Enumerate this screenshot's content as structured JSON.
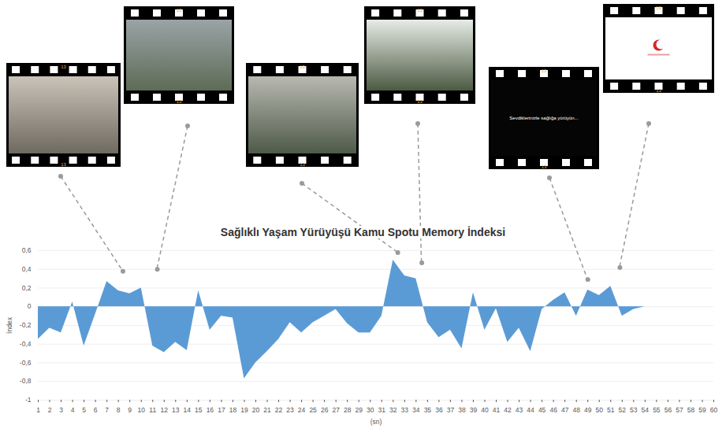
{
  "chart_data": {
    "type": "area",
    "title": "Sağlıklı Yaşam Yürüyüşü Kamu Spotu Memory İndeksi",
    "x_label": "(sn)",
    "y_label": "İndex",
    "x": [
      1,
      2,
      3,
      4,
      5,
      6,
      7,
      8,
      9,
      10,
      11,
      12,
      13,
      14,
      15,
      16,
      17,
      18,
      19,
      20,
      21,
      22,
      23,
      24,
      25,
      26,
      27,
      28,
      29,
      30,
      31,
      32,
      33,
      34,
      35,
      36,
      37,
      38,
      39,
      40,
      41,
      42,
      43,
      44,
      45,
      46,
      47,
      48,
      49,
      50,
      51,
      52,
      53,
      54,
      55,
      56,
      57,
      58,
      59,
      60
    ],
    "values": [
      -0.35,
      -0.23,
      -0.28,
      0.05,
      -0.42,
      -0.08,
      0.27,
      0.17,
      0.14,
      0.2,
      -0.42,
      -0.49,
      -0.38,
      -0.47,
      0.17,
      -0.25,
      -0.1,
      -0.12,
      -0.77,
      -0.6,
      -0.48,
      -0.35,
      -0.17,
      -0.28,
      -0.17,
      -0.1,
      -0.03,
      -0.18,
      -0.28,
      -0.28,
      -0.1,
      0.5,
      0.33,
      0.3,
      -0.17,
      -0.33,
      -0.25,
      -0.45,
      0.15,
      -0.25,
      -0.02,
      -0.38,
      -0.23,
      -0.48,
      -0.03,
      0.07,
      0.15,
      -0.1,
      0.18,
      0.12,
      0.22,
      -0.1,
      -0.03,
      null,
      null,
      null,
      null,
      null,
      null,
      null
    ],
    "color": "#5b9bd5",
    "xlim": [
      1,
      60
    ],
    "xticks": [
      1,
      2,
      3,
      4,
      5,
      6,
      7,
      8,
      9,
      10,
      11,
      12,
      13,
      14,
      15,
      16,
      17,
      18,
      19,
      20,
      21,
      22,
      23,
      24,
      25,
      26,
      27,
      28,
      29,
      30,
      31,
      32,
      33,
      34,
      35,
      36,
      37,
      38,
      39,
      40,
      41,
      42,
      43,
      44,
      45,
      46,
      47,
      48,
      49,
      50,
      51,
      52,
      53,
      54,
      55,
      56,
      57,
      58,
      59,
      60
    ],
    "ylim": [
      -1,
      0.6
    ],
    "yticks": [
      -1,
      {
        "value": -0.8,
        "label": "-0,8"
      },
      {
        "value": -0.6,
        "label": "-0,6"
      },
      {
        "value": -0.4,
        "label": "-0,4"
      },
      {
        "value": -0.2,
        "label": "-0,2"
      },
      0,
      {
        "value": 0.2,
        "label": "0,2"
      },
      {
        "value": 0.4,
        "label": "0,4"
      },
      {
        "value": 0.6,
        "label": "0,6"
      }
    ],
    "grid": true,
    "film_label": "13",
    "annotations": [
      {
        "x": 8.4,
        "y": 0.38
      },
      {
        "x": 11.4,
        "y": 0.4
      },
      {
        "x": 32.4,
        "y": 0.58
      },
      {
        "x": 34.5,
        "y": 0.47
      },
      {
        "x": 49,
        "y": 0.29,
        "text": "Sevdiklerinizle sağlığa yürüyün..."
      },
      {
        "x": 51.8,
        "y": 0.42
      }
    ]
  }
}
